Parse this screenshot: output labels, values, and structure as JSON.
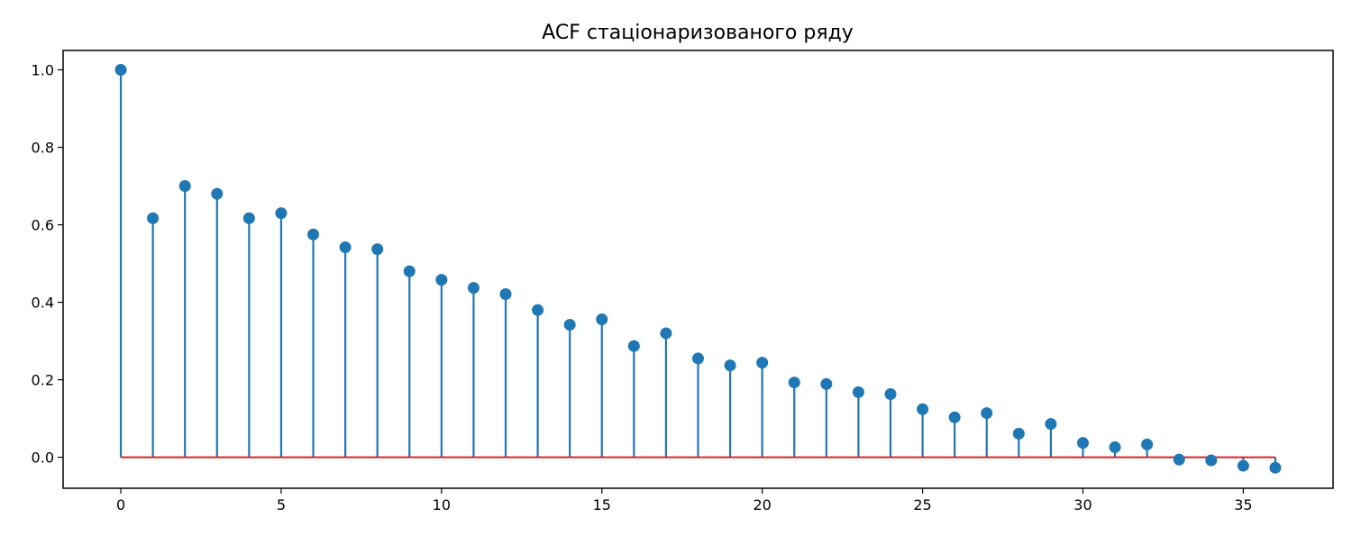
{
  "chart_data": {
    "type": "stem",
    "title": "ACF стаціонаризованого ряду",
    "xlabel": "",
    "ylabel": "",
    "xlim": [
      -1.8,
      37.8
    ],
    "ylim": [
      -0.08,
      1.05
    ],
    "x_ticks": [
      0,
      5,
      10,
      15,
      20,
      25,
      30,
      35
    ],
    "y_ticks": [
      0.0,
      0.2,
      0.4,
      0.6,
      0.8,
      1.0
    ],
    "x": [
      0,
      1,
      2,
      3,
      4,
      5,
      6,
      7,
      8,
      9,
      10,
      11,
      12,
      13,
      14,
      15,
      16,
      17,
      18,
      19,
      20,
      21,
      22,
      23,
      24,
      25,
      26,
      27,
      28,
      29,
      30,
      31,
      32,
      33,
      34,
      35,
      36
    ],
    "values": [
      1.0,
      0.617,
      0.7,
      0.68,
      0.617,
      0.63,
      0.575,
      0.542,
      0.537,
      0.48,
      0.458,
      0.437,
      0.421,
      0.38,
      0.342,
      0.356,
      0.287,
      0.32,
      0.255,
      0.237,
      0.244,
      0.193,
      0.189,
      0.168,
      0.163,
      0.124,
      0.103,
      0.114,
      0.061,
      0.086,
      0.037,
      0.026,
      0.033,
      -0.006,
      -0.008,
      -0.022,
      -0.027
    ],
    "grid": false,
    "colors": {
      "stem": "#1f77b4",
      "marker": "#1f77b4",
      "baseline": "#d62728"
    }
  }
}
